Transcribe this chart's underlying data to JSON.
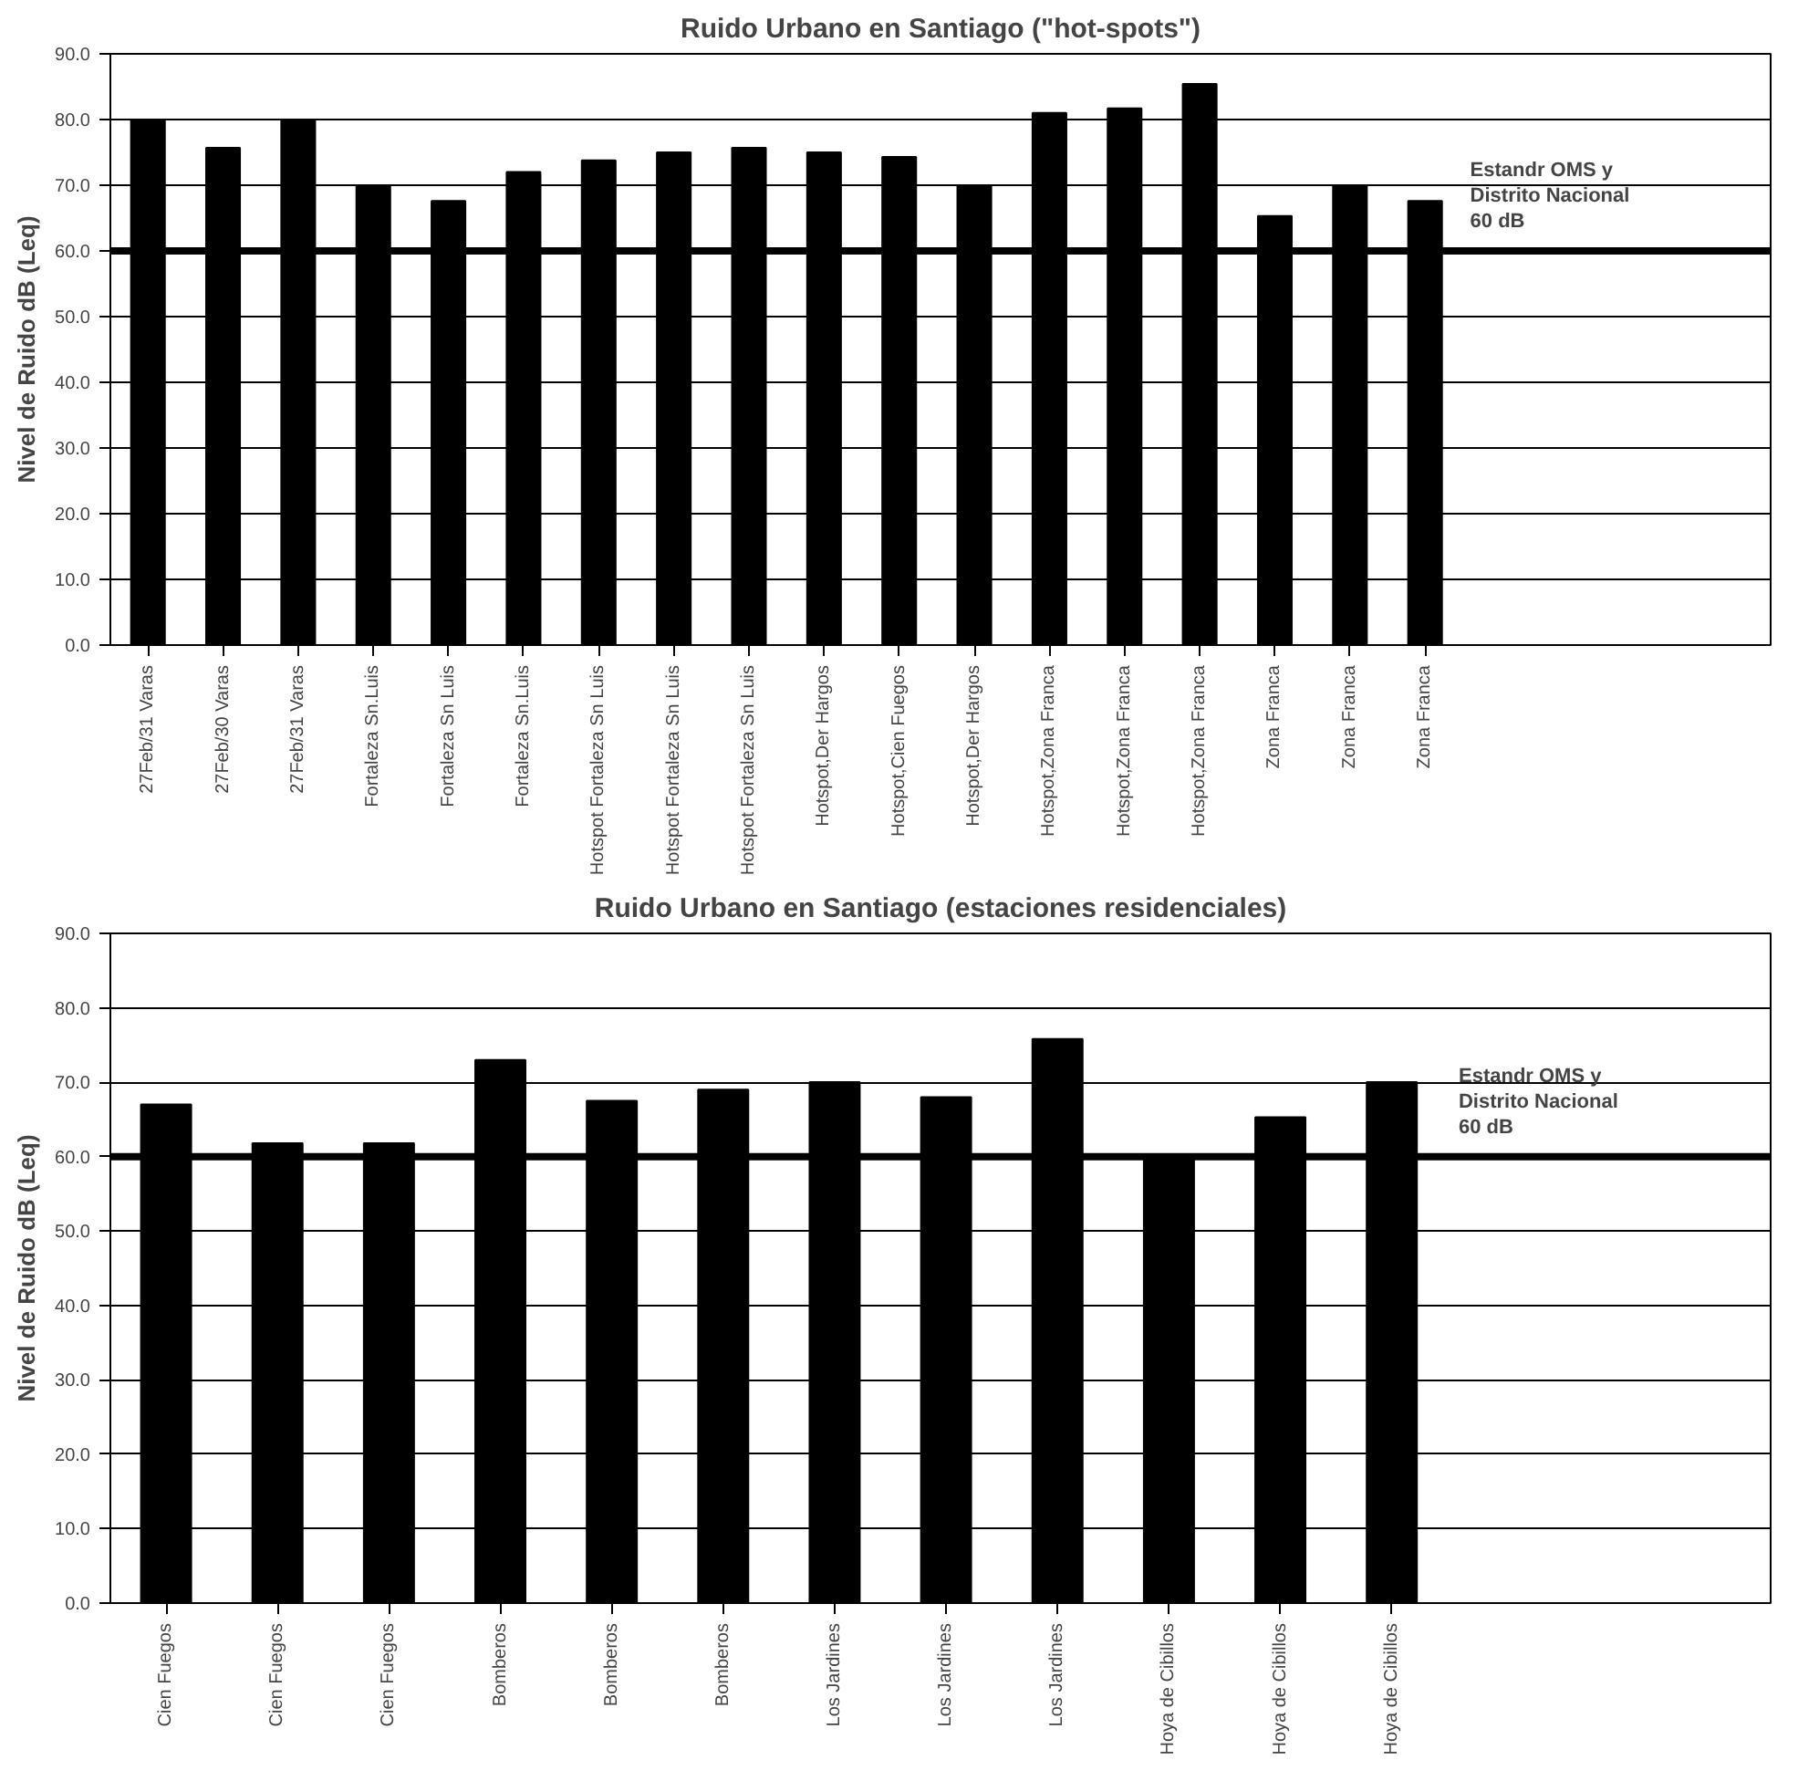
{
  "chart_data": [
    {
      "type": "bar",
      "title": "Ruido Urbano en Santiago (\"hot-spots\")",
      "ylabel": "Nivel de Ruido dB (Leq)",
      "categories": [
        "27Feb/31 Varas",
        "27Feb/30 Varas",
        "27Feb/31 Varas",
        "Fortaleza Sn.Luis",
        "Fortaleza Sn Luis",
        "Fortaleza Sn.Luis",
        "Hotspot Fortaleza Sn Luis",
        "Hotspot Fortaleza Sn Luis",
        "Hotspot Fortaleza Sn Luis",
        "Hotspot,Der Hargos",
        "Hotspot,Cien Fuegos",
        "Hotspot,Der Hargos",
        "Hotspot,Zona Franca",
        "Hotspot,Zona Franca",
        "Hotspot,Zona Franca",
        "Zona Franca",
        "Zona Franca",
        "Zona Franca"
      ],
      "values": [
        80,
        75.7,
        80,
        70,
        67.6,
        72,
        73.8,
        75,
        75.7,
        75,
        74.3,
        70,
        81,
        81.7,
        85.4,
        65.3,
        70,
        67.6
      ],
      "color": "#000000",
      "ylim": [
        0,
        90
      ],
      "yticks": [
        {
          "value": 0,
          "label": "0.0"
        },
        {
          "value": 10,
          "label": "10.0"
        },
        {
          "value": 20,
          "label": "20.0"
        },
        {
          "value": 30,
          "label": "30.0"
        },
        {
          "value": 40,
          "label": "40.0"
        },
        {
          "value": 50,
          "label": "50.0"
        },
        {
          "value": 60,
          "label": "60.0"
        },
        {
          "value": 70,
          "label": "70.0"
        },
        {
          "value": 80,
          "label": "80.0"
        },
        {
          "value": 90,
          "label": "90.0"
        }
      ],
      "grid": "y",
      "ref_lines": [
        {
          "axis": "y",
          "value": 60,
          "label": "Estandr OMS y\nDistrito Nacional\n60 dB",
          "color": "#000000"
        }
      ]
    },
    {
      "type": "bar",
      "title": "Ruido Urbano en Santiago (estaciones residenciales)",
      "ylabel": "Nivel de Ruido dB (Leq)",
      "categories": [
        "Cien Fuegos",
        "Cien Fuegos",
        "Cien Fuegos",
        "Bomberos",
        "Bomberos",
        "Bomberos",
        "Los Jardines",
        "Los Jardines",
        "Los Jardines",
        "Hoya de Cibillos",
        "Hoya de Cibillos",
        "Hoya de Cibillos"
      ],
      "values": [
        67,
        61.8,
        61.8,
        73,
        67.5,
        69,
        70,
        68,
        75.8,
        60,
        65.3,
        70
      ],
      "color": "#000000",
      "ylim": [
        0,
        90
      ],
      "yticks": [
        {
          "value": 0,
          "label": "0.0"
        },
        {
          "value": 10,
          "label": "10.0"
        },
        {
          "value": 20,
          "label": "20.0"
        },
        {
          "value": 30,
          "label": "30.0"
        },
        {
          "value": 40,
          "label": "40.0"
        },
        {
          "value": 50,
          "label": "50.0"
        },
        {
          "value": 60,
          "label": "60.0"
        },
        {
          "value": 70,
          "label": "70.0"
        },
        {
          "value": 80,
          "label": "80.0"
        },
        {
          "value": 90,
          "label": "90.0"
        }
      ],
      "grid": "y",
      "ref_lines": [
        {
          "axis": "y",
          "value": 60,
          "label": "Estandr OMS y\nDistrito Nacional\n60 dB",
          "color": "#000000"
        }
      ]
    }
  ]
}
